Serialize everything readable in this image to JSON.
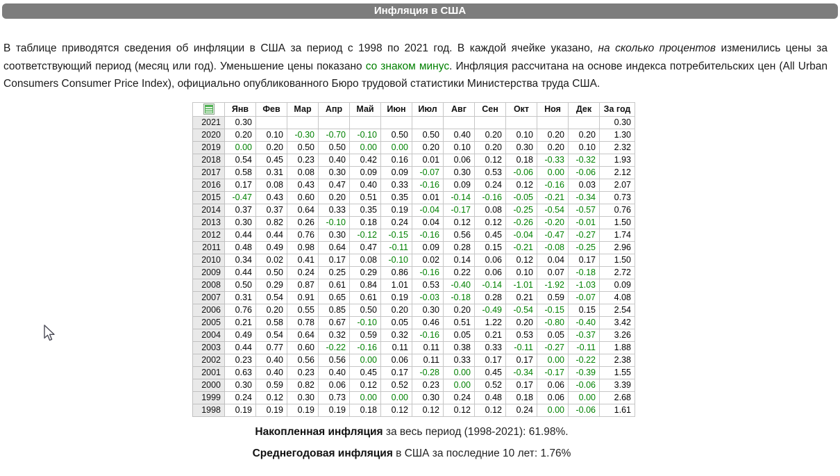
{
  "header": {
    "title": "Инфляция в США"
  },
  "intro": {
    "part1": "В таблице приводятся сведения об инфляции в США за период с 1998 по 2021 год. В каждой ячейке указано, ",
    "italic_phrase": "на сколько процентов",
    "part2": " изменились цены за соответствующий период (месяц или год). Уменьшение цены показано ",
    "green_phrase": "со знаком минус",
    "part3": ". Инфляция рассчитана на основе индекса потребительских цен (All Urban Consumers Consumer Price Index), официально опубликованного Бюро трудовой статистики Министерства труда США."
  },
  "table": {
    "corner_icon": "excel-sheet-icon",
    "columns": [
      "Янв",
      "Фев",
      "Мар",
      "Апр",
      "Май",
      "Июн",
      "Июл",
      "Авг",
      "Сен",
      "Окт",
      "Ноя",
      "Дек",
      "За год"
    ],
    "rows": [
      {
        "year": "2021",
        "values": [
          "0.30",
          "",
          "",
          "",
          "",
          "",
          "",
          "",
          "",
          "",
          "",
          "",
          "0.30"
        ]
      },
      {
        "year": "2020",
        "values": [
          "0.20",
          "0.10",
          "-0.30",
          "-0.70",
          "-0.10",
          "0.50",
          "0.50",
          "0.40",
          "0.20",
          "0.10",
          "0.20",
          "0.20",
          "1.30"
        ]
      },
      {
        "year": "2019",
        "values": [
          "0.00",
          "0.20",
          "0.50",
          "0.50",
          "0.00",
          "0.00",
          "0.20",
          "0.10",
          "0.20",
          "0.30",
          "0.20",
          "0.10",
          "2.32"
        ]
      },
      {
        "year": "2018",
        "values": [
          "0.54",
          "0.45",
          "0.23",
          "0.40",
          "0.42",
          "0.16",
          "0.01",
          "0.06",
          "0.12",
          "0.18",
          "-0.33",
          "-0.32",
          "1.93"
        ]
      },
      {
        "year": "2017",
        "values": [
          "0.58",
          "0.31",
          "0.08",
          "0.30",
          "0.09",
          "0.09",
          "-0.07",
          "0.30",
          "0.53",
          "-0.06",
          "0.00",
          "-0.06",
          "2.12"
        ]
      },
      {
        "year": "2016",
        "values": [
          "0.17",
          "0.08",
          "0.43",
          "0.47",
          "0.40",
          "0.33",
          "-0.16",
          "0.09",
          "0.24",
          "0.12",
          "-0.16",
          "0.03",
          "2.07"
        ]
      },
      {
        "year": "2015",
        "values": [
          "-0.47",
          "0.43",
          "0.60",
          "0.20",
          "0.51",
          "0.35",
          "0.01",
          "-0.14",
          "-0.16",
          "-0.05",
          "-0.21",
          "-0.34",
          "0.73"
        ]
      },
      {
        "year": "2014",
        "values": [
          "0.37",
          "0.37",
          "0.64",
          "0.33",
          "0.35",
          "0.19",
          "-0.04",
          "-0.17",
          "0.08",
          "-0.25",
          "-0.54",
          "-0.57",
          "0.76"
        ]
      },
      {
        "year": "2013",
        "values": [
          "0.30",
          "0.82",
          "0.26",
          "-0.10",
          "0.18",
          "0.24",
          "0.04",
          "0.12",
          "0.12",
          "-0.26",
          "-0.20",
          "-0.01",
          "1.50"
        ]
      },
      {
        "year": "2012",
        "values": [
          "0.44",
          "0.44",
          "0.76",
          "0.30",
          "-0.12",
          "-0.15",
          "-0.16",
          "0.56",
          "0.45",
          "-0.04",
          "-0.47",
          "-0.27",
          "1.74"
        ]
      },
      {
        "year": "2011",
        "values": [
          "0.48",
          "0.49",
          "0.98",
          "0.64",
          "0.47",
          "-0.11",
          "0.09",
          "0.28",
          "0.15",
          "-0.21",
          "-0.08",
          "-0.25",
          "2.96"
        ]
      },
      {
        "year": "2010",
        "values": [
          "0.34",
          "0.02",
          "0.41",
          "0.17",
          "0.08",
          "-0.10",
          "0.02",
          "0.14",
          "0.06",
          "0.12",
          "0.04",
          "0.17",
          "1.50"
        ]
      },
      {
        "year": "2009",
        "values": [
          "0.44",
          "0.50",
          "0.24",
          "0.25",
          "0.29",
          "0.86",
          "-0.16",
          "0.22",
          "0.06",
          "0.10",
          "0.07",
          "-0.18",
          "2.72"
        ]
      },
      {
        "year": "2008",
        "values": [
          "0.50",
          "0.29",
          "0.87",
          "0.61",
          "0.84",
          "1.01",
          "0.53",
          "-0.40",
          "-0.14",
          "-1.01",
          "-1.92",
          "-1.03",
          "0.09"
        ]
      },
      {
        "year": "2007",
        "values": [
          "0.31",
          "0.54",
          "0.91",
          "0.65",
          "0.61",
          "0.19",
          "-0.03",
          "-0.18",
          "0.28",
          "0.21",
          "0.59",
          "-0.07",
          "4.08"
        ]
      },
      {
        "year": "2006",
        "values": [
          "0.76",
          "0.20",
          "0.55",
          "0.85",
          "0.50",
          "0.20",
          "0.30",
          "0.20",
          "-0.49",
          "-0.54",
          "-0.15",
          "0.15",
          "2.54"
        ]
      },
      {
        "year": "2005",
        "values": [
          "0.21",
          "0.58",
          "0.78",
          "0.67",
          "-0.10",
          "0.05",
          "0.46",
          "0.51",
          "1.22",
          "0.20",
          "-0.80",
          "-0.40",
          "3.42"
        ]
      },
      {
        "year": "2004",
        "values": [
          "0.49",
          "0.54",
          "0.64",
          "0.32",
          "0.59",
          "0.32",
          "-0.16",
          "0.05",
          "0.21",
          "0.53",
          "0.05",
          "-0.37",
          "3.26"
        ]
      },
      {
        "year": "2003",
        "values": [
          "0.44",
          "0.77",
          "0.60",
          "-0.22",
          "-0.16",
          "0.11",
          "0.11",
          "0.38",
          "0.33",
          "-0.11",
          "-0.27",
          "-0.11",
          "1.88"
        ]
      },
      {
        "year": "2002",
        "values": [
          "0.23",
          "0.40",
          "0.56",
          "0.56",
          "0.00",
          "0.06",
          "0.11",
          "0.33",
          "0.17",
          "0.17",
          "0.00",
          "-0.22",
          "2.38"
        ]
      },
      {
        "year": "2001",
        "values": [
          "0.63",
          "0.40",
          "0.23",
          "0.40",
          "0.45",
          "0.17",
          "-0.28",
          "0.00",
          "0.45",
          "-0.34",
          "-0.17",
          "-0.39",
          "1.55"
        ]
      },
      {
        "year": "2000",
        "values": [
          "0.30",
          "0.59",
          "0.82",
          "0.06",
          "0.12",
          "0.52",
          "0.23",
          "0.00",
          "0.52",
          "0.17",
          "0.06",
          "-0.06",
          "3.39"
        ]
      },
      {
        "year": "1999",
        "values": [
          "0.24",
          "0.12",
          "0.30",
          "0.73",
          "0.00",
          "0.00",
          "0.30",
          "0.24",
          "0.48",
          "0.18",
          "0.06",
          "0.00",
          "2.68"
        ]
      },
      {
        "year": "1998",
        "values": [
          "0.19",
          "0.19",
          "0.19",
          "0.19",
          "0.18",
          "0.12",
          "0.12",
          "0.12",
          "0.12",
          "0.24",
          "0.00",
          "-0.06",
          "1.61"
        ]
      }
    ]
  },
  "notes": {
    "line1_bold": "Накопленная инфляция",
    "line1_rest": " за весь период (1998-2021): 61.98%.",
    "line2_bold": "Среднегодовая инфляция",
    "line2_rest": " в США за последние 10 лет: 1.76%"
  },
  "colors": {
    "title_bar_bg": "#7d7d7d",
    "title_text": "#ffffff",
    "negative_value_green": "#008000",
    "year_cell_bg": "#e9e9e9",
    "table_border": "#c6c6c6"
  }
}
